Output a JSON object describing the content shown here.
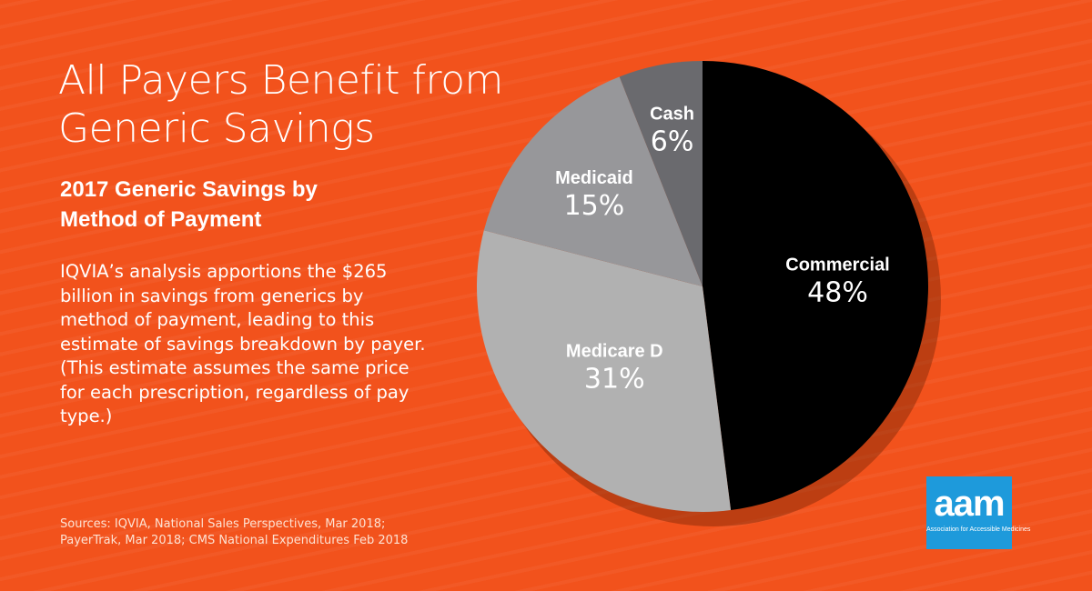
{
  "title_line1": "All Payers Benefit from",
  "title_line2": "Generic Savings",
  "subtitle_line1": "2017 Generic Savings by",
  "subtitle_line2": "Method of Payment",
  "description": "IQVIA’s analysis apportions the $265 billion in savings from generics by method of payment, leading to this estimate of savings breakdown by payer. (This estimate assumes the same price for each prescription, regardless of pay type.)",
  "sources_line1": "Sources: IQVIA, National Sales Perspectives, Mar 2018;",
  "sources_line2": "PayerTrak, Mar 2018; CMS National Expenditures Feb 2018",
  "logo": {
    "mark": "aam",
    "tagline": "Association for Accessible Medicines"
  },
  "colors": {
    "background": "#F2521C",
    "logo": "#1E9ADB",
    "commercial": "#000000",
    "medicare_d": "#B1B1B1",
    "medicaid": "#97979A",
    "cash": "#6A6A6E"
  },
  "chart_data": {
    "type": "pie",
    "title": "2017 Generic Savings by Method of Payment",
    "slices": [
      {
        "label": "Commercial",
        "value": 48,
        "display": "48%",
        "color": "#000000"
      },
      {
        "label": "Medicare D",
        "value": 31,
        "display": "31%",
        "color": "#B1B1B1"
      },
      {
        "label": "Medicaid",
        "value": 15,
        "display": "15%",
        "color": "#97979A"
      },
      {
        "label": "Cash",
        "value": 6,
        "display": "6%",
        "color": "#6A6A6E"
      }
    ]
  }
}
